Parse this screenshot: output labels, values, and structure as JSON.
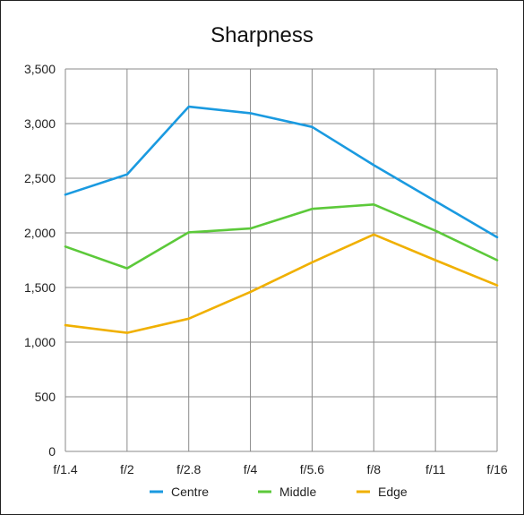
{
  "chart_data": {
    "type": "line",
    "title": "Sharpness",
    "xlabel": "",
    "ylabel": "",
    "categories": [
      "f/1.4",
      "f/2",
      "f/2.8",
      "f/4",
      "f/5.6",
      "f/8",
      "f/11",
      "f/16"
    ],
    "ylim": [
      0,
      3500
    ],
    "yticks": [
      0,
      500,
      1000,
      1500,
      2000,
      2500,
      3000,
      3500
    ],
    "ytick_labels": [
      "0",
      "500",
      "1,000",
      "1,500",
      "2,000",
      "2,500",
      "3,000",
      "3,500"
    ],
    "grid": true,
    "legend_position": "bottom",
    "series": [
      {
        "name": "Centre",
        "color": "#1a9ae0",
        "values": [
          2350,
          2535,
          3155,
          3095,
          2970,
          2620,
          2290,
          1960
        ]
      },
      {
        "name": "Middle",
        "color": "#5cc93a",
        "values": [
          1875,
          1675,
          2005,
          2040,
          2220,
          2260,
          2020,
          1750
        ]
      },
      {
        "name": "Edge",
        "color": "#f0b000",
        "values": [
          1155,
          1085,
          1215,
          1460,
          1730,
          1985,
          1750,
          1520
        ]
      }
    ]
  }
}
